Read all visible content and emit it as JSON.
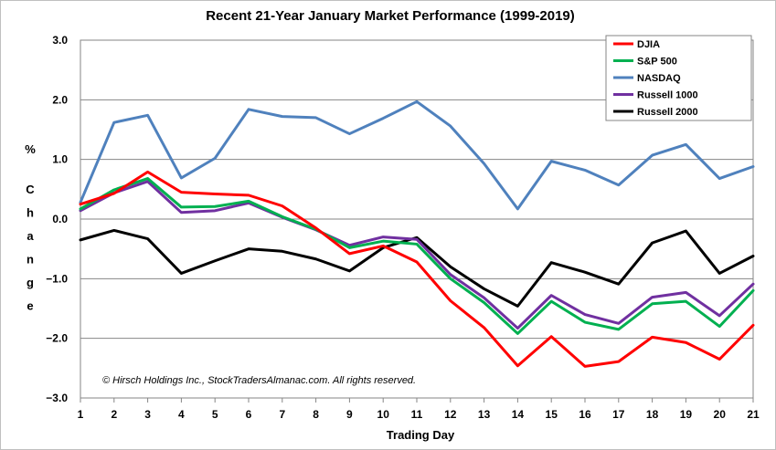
{
  "chart_data": {
    "type": "line",
    "title": "Recent 21-Year January Market Performance (1999-2019)",
    "xlabel": "Trading Day",
    "ylabel": "% Change",
    "ylim": [
      -3.0,
      3.0
    ],
    "yticks": [
      3.0,
      2.0,
      1.0,
      0.0,
      -1.0,
      -2.0,
      -3.0
    ],
    "ytick_labels": [
      "3.0",
      "2.0",
      "1.0",
      "0.0",
      "−1.0",
      "−2.0",
      "−3.0"
    ],
    "x": [
      1,
      2,
      3,
      4,
      5,
      6,
      7,
      8,
      9,
      10,
      11,
      12,
      13,
      14,
      15,
      16,
      17,
      18,
      19,
      20,
      21
    ],
    "grid": "horizontal",
    "legend_position": "top-right",
    "annotation": "© Hirsch Holdings Inc., StockTradersAlmanac.com.  All rights reserved.",
    "series": [
      {
        "name": "DJIA",
        "color": "#ff0000",
        "values": [
          0.25,
          0.43,
          0.79,
          0.45,
          0.42,
          0.4,
          0.22,
          -0.15,
          -0.58,
          -0.45,
          -0.72,
          -1.37,
          -1.82,
          -2.46,
          -1.97,
          -2.47,
          -2.39,
          -1.98,
          -2.07,
          -2.35,
          -1.78
        ]
      },
      {
        "name": "S&P 500",
        "color": "#00b050",
        "values": [
          0.17,
          0.49,
          0.68,
          0.2,
          0.21,
          0.3,
          0.04,
          -0.17,
          -0.48,
          -0.37,
          -0.42,
          -1.0,
          -1.4,
          -1.92,
          -1.38,
          -1.73,
          -1.85,
          -1.42,
          -1.38,
          -1.8,
          -1.2
        ]
      },
      {
        "name": "NASDAQ",
        "color": "#4f81bd",
        "values": [
          0.28,
          1.62,
          1.74,
          0.69,
          1.02,
          1.84,
          1.72,
          1.7,
          1.43,
          1.69,
          1.97,
          1.56,
          0.93,
          0.17,
          0.97,
          0.82,
          0.57,
          1.07,
          1.25,
          0.68,
          0.88
        ]
      },
      {
        "name": "Russell 1000",
        "color": "#7030a0",
        "values": [
          0.14,
          0.44,
          0.63,
          0.11,
          0.14,
          0.27,
          0.03,
          -0.18,
          -0.44,
          -0.3,
          -0.34,
          -0.93,
          -1.32,
          -1.83,
          -1.28,
          -1.6,
          -1.75,
          -1.31,
          -1.23,
          -1.62,
          -1.09
        ]
      },
      {
        "name": "Russell 2000",
        "color": "#000000",
        "values": [
          -0.35,
          -0.19,
          -0.33,
          -0.91,
          -0.7,
          -0.5,
          -0.54,
          -0.67,
          -0.87,
          -0.48,
          -0.31,
          -0.8,
          -1.17,
          -1.46,
          -0.73,
          -0.89,
          -1.09,
          -0.4,
          -0.2,
          -0.91,
          -0.62
        ]
      }
    ]
  }
}
